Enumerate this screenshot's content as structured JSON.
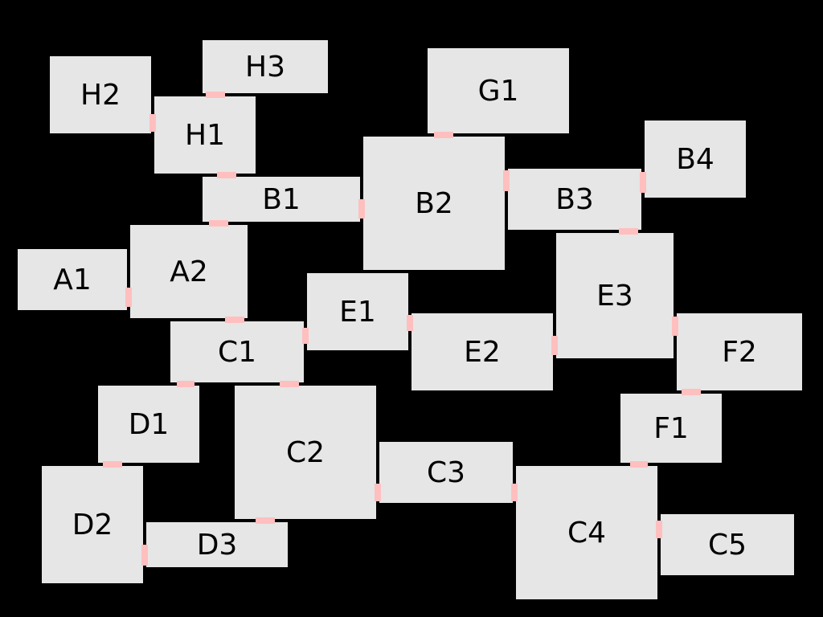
{
  "colors": {
    "background": "#000000",
    "room_fill": "#e6e6e6",
    "door_fill": "#ffbfbf",
    "label": "#000000"
  },
  "rooms": {
    "H2": "H2",
    "H3": "H3",
    "H1": "H1",
    "G1": "G1",
    "B4": "B4",
    "B1": "B1",
    "B2": "B2",
    "B3": "B3",
    "A1": "A1",
    "A2": "A2",
    "E3": "E3",
    "E1": "E1",
    "E2": "E2",
    "C1": "C1",
    "F2": "F2",
    "D1": "D1",
    "F1": "F1",
    "C2": "C2",
    "C3": "C3",
    "D2": "D2",
    "C4": "C4",
    "C5": "C5",
    "D3": "D3"
  },
  "connections": [
    [
      "H2",
      "H1"
    ],
    [
      "H3",
      "H1"
    ],
    [
      "H1",
      "B1"
    ],
    [
      "G1",
      "B2"
    ],
    [
      "B1",
      "B2"
    ],
    [
      "B2",
      "B3"
    ],
    [
      "B3",
      "B4"
    ],
    [
      "B3",
      "E3"
    ],
    [
      "B1",
      "A2"
    ],
    [
      "A1",
      "A2"
    ],
    [
      "A2",
      "C1"
    ],
    [
      "C1",
      "E1"
    ],
    [
      "E1",
      "E2"
    ],
    [
      "E2",
      "E3"
    ],
    [
      "E3",
      "F2"
    ],
    [
      "F2",
      "F1"
    ],
    [
      "F1",
      "C4"
    ],
    [
      "C1",
      "D1"
    ],
    [
      "C1",
      "C2"
    ],
    [
      "D1",
      "D2"
    ],
    [
      "C2",
      "C3"
    ],
    [
      "C3",
      "C4"
    ],
    [
      "C4",
      "C5"
    ],
    [
      "C2",
      "D3"
    ],
    [
      "D2",
      "D3"
    ]
  ]
}
